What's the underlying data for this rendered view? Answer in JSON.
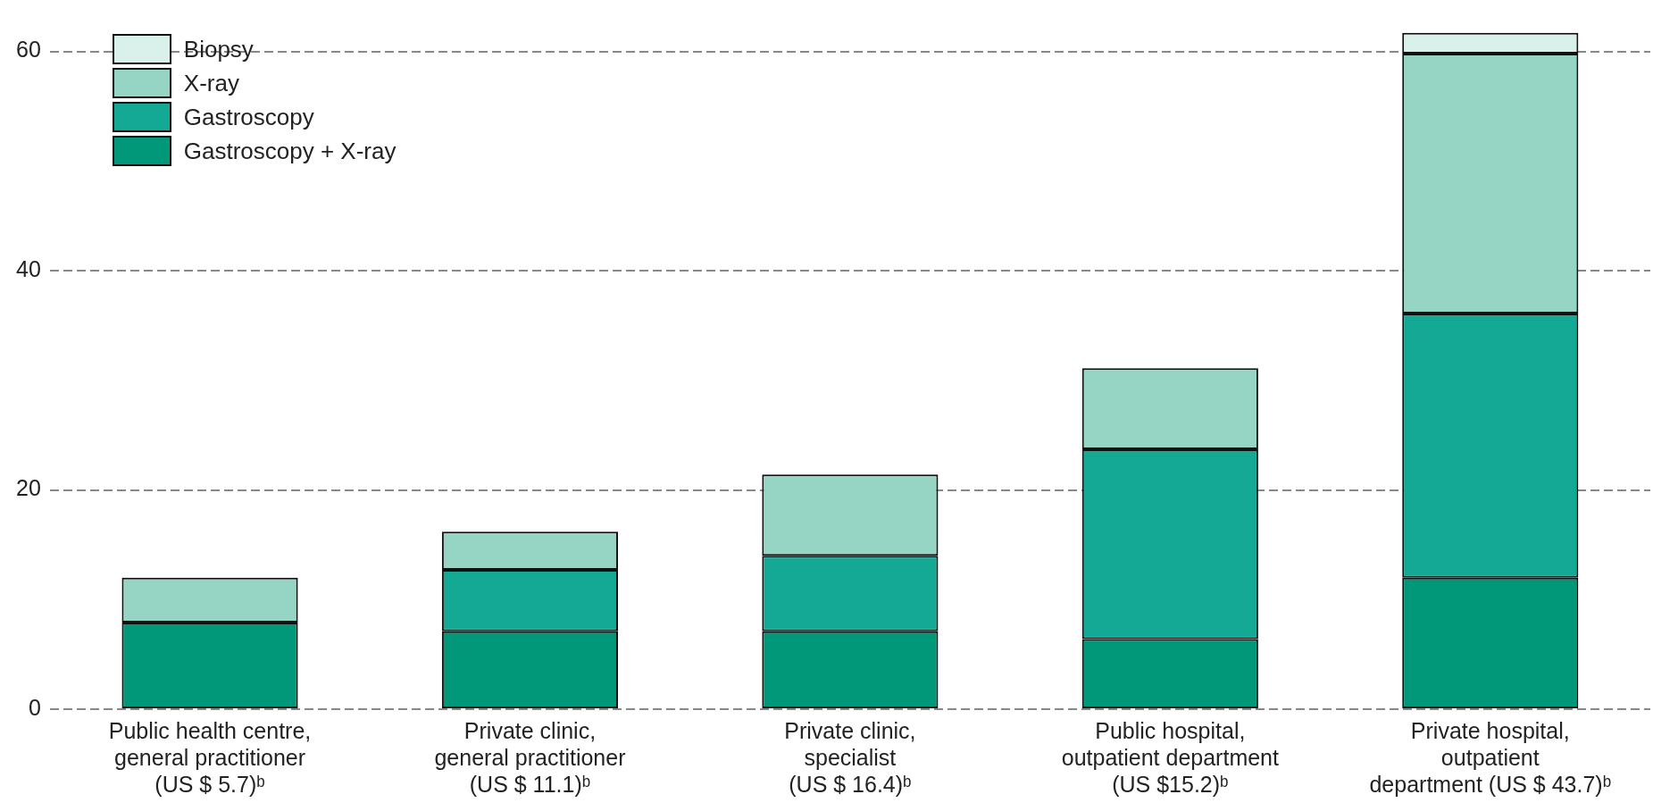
{
  "chart_data": {
    "type": "bar",
    "stacked": true,
    "categories": [
      "Public health centre,\ngeneral practitioner\n(US $ 5.7)ᵇ",
      "Private clinic,\ngeneral practitioner\n(US $ 11.1)ᵇ",
      "Private clinic,\nspecialist\n(US $ 16.4)ᵇ",
      "Public hospital,\noutpatient department\n(US $15.2)ᵇ",
      "Private hospital,\noutpatient\ndepartment (US $ 43.7)ᵇ"
    ],
    "series": [
      {
        "name": "Gastroscopy + X-ray",
        "color": "#009878",
        "values": [
          7.9,
          7.1,
          7.1,
          6.4,
          12.0
        ]
      },
      {
        "name": "Gastroscopy",
        "color": "#14a994",
        "values": [
          null,
          5.6,
          6.9,
          17.3,
          24.1
        ]
      },
      {
        "name": "X-ray",
        "color": "#96d4c3",
        "values": [
          4.1,
          3.5,
          7.4,
          7.4,
          23.7
        ]
      },
      {
        "name": "Biopsy",
        "color": "#d9f1ea",
        "values": [
          null,
          null,
          null,
          null,
          1.9
        ]
      }
    ],
    "ylim": [
      0,
      62
    ],
    "yticks": [
      0,
      20,
      40,
      60
    ],
    "grid": "y",
    "legend": "top left"
  }
}
